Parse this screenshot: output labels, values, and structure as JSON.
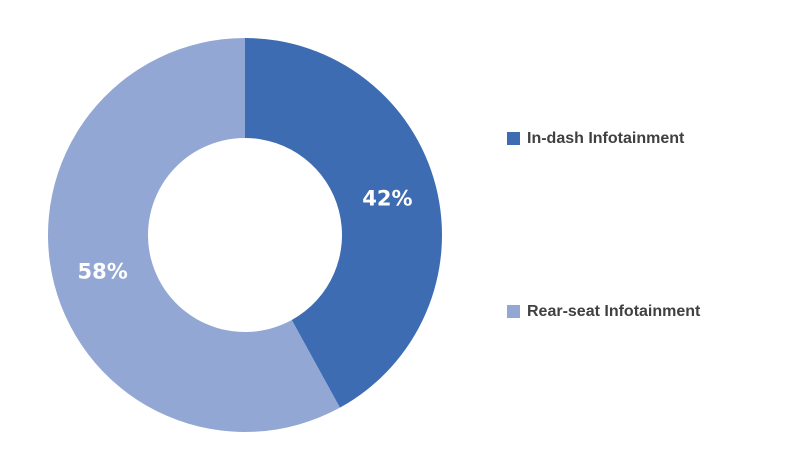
{
  "chart_data": {
    "type": "pie",
    "subtype": "donut",
    "categories": [
      "In-dash Infotainment",
      "Rear-seat Infotainment"
    ],
    "values": [
      42,
      58
    ],
    "data_labels": [
      "42%",
      "58%"
    ],
    "colors": [
      "#3D6CB2",
      "#92A7D4"
    ],
    "label_color": "#FFFFFF",
    "start_angle_deg": 0,
    "direction": "clockwise",
    "hole_ratio": 0.49,
    "legend": {
      "position": "right",
      "entries": [
        {
          "label": "In-dash Infotainment",
          "swatch_color": "#3D6CB2"
        },
        {
          "label": "Rear-seat Infotainment",
          "swatch_color": "#92A7D4"
        }
      ]
    }
  }
}
